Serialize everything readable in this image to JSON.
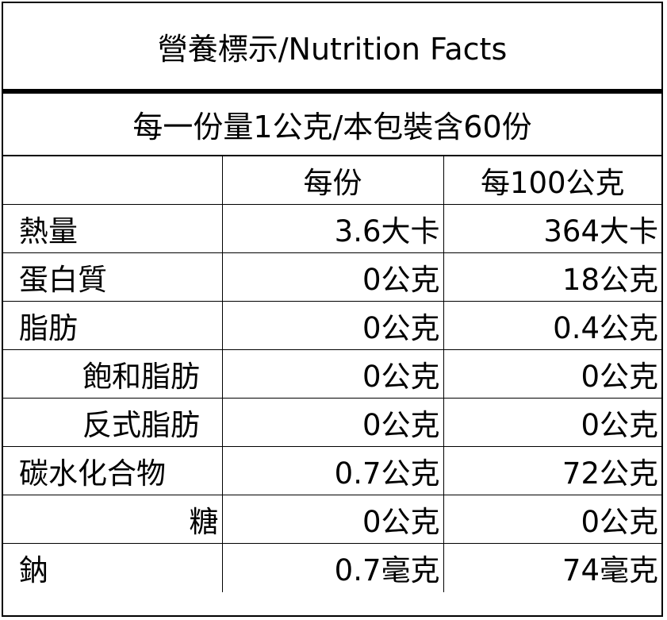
{
  "title": "營養標示/Nutrition Facts",
  "serving": "每一份量1公克/本包裝含60份",
  "header": {
    "blank": "",
    "per_serving": "每份",
    "per_100g": "每100公克"
  },
  "rows": [
    {
      "name": "熱量",
      "per_serving": "3.6大卡",
      "per_100g": "364大卡"
    },
    {
      "name": "蛋白質",
      "per_serving": "0公克",
      "per_100g": "18公克"
    },
    {
      "name": "脂肪",
      "per_serving": "0公克",
      "per_100g": "0.4公克"
    },
    {
      "name": "飽和脂肪",
      "per_serving": "0公克",
      "per_100g": "0公克"
    },
    {
      "name": "反式脂肪",
      "per_serving": "0公克",
      "per_100g": "0公克"
    },
    {
      "name": "碳水化合物",
      "per_serving": "0.7公克",
      "per_100g": "72公克"
    },
    {
      "name": "糖",
      "per_serving": "0公克",
      "per_100g": "0公克"
    },
    {
      "name": "鈉",
      "per_serving": "0.7毫克",
      "per_100g": "74毫克"
    }
  ]
}
